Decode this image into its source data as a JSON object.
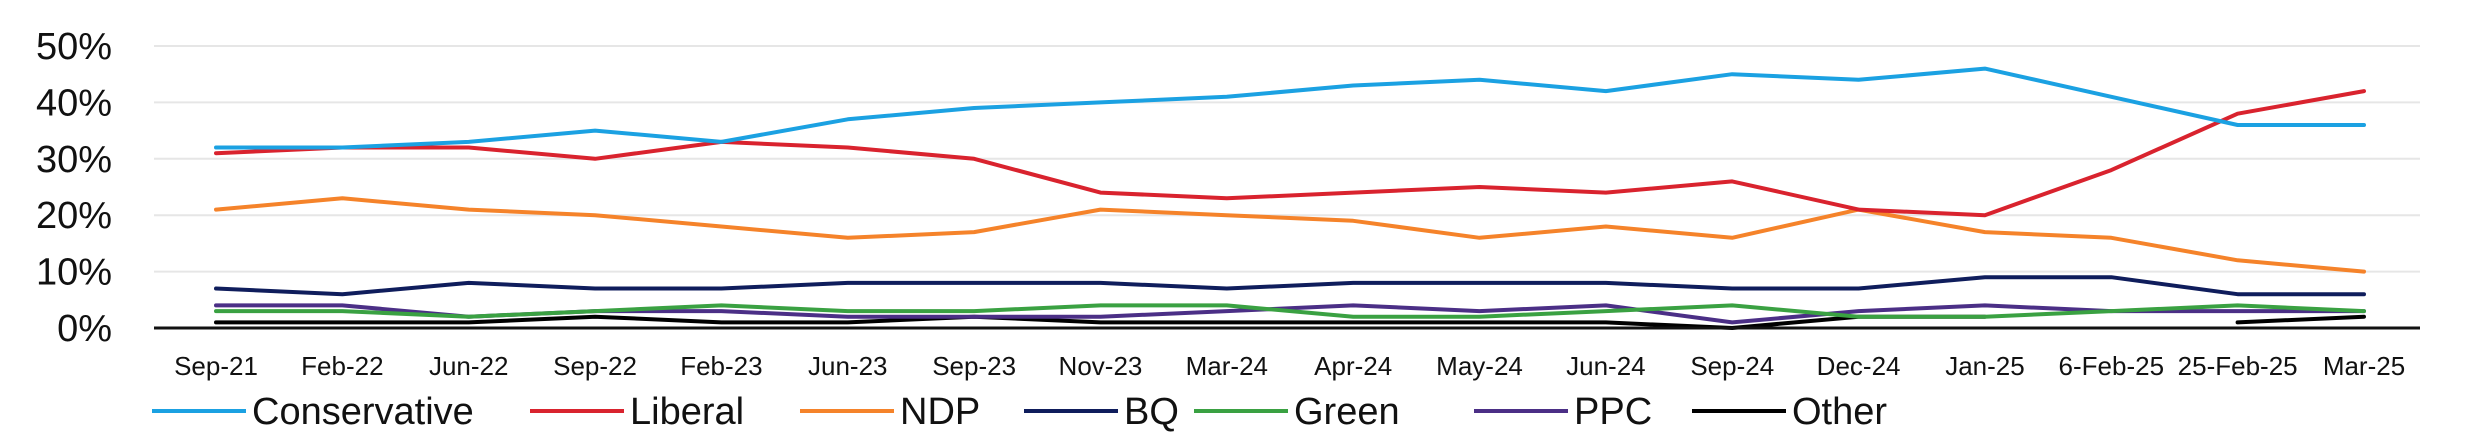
{
  "chart_data": {
    "type": "line",
    "title": "",
    "xlabel": "",
    "ylabel": "",
    "ylim": [
      0,
      50
    ],
    "yticks": [
      0,
      10,
      20,
      30,
      40,
      50
    ],
    "ytick_labels": [
      "0%",
      "10%",
      "20%",
      "30%",
      "40%",
      "50%"
    ],
    "grid": "horizontal",
    "legend_position": "bottom",
    "categories": [
      "Sep-21",
      "Feb-22",
      "Jun-22",
      "Sep-22",
      "Feb-23",
      "Jun-23",
      "Sep-23",
      "Nov-23",
      "Mar-24",
      "Apr-24",
      "May-24",
      "Jun-24",
      "Sep-24",
      "Dec-24",
      "Jan-25",
      "6-Feb-25",
      "25-Feb-25",
      "Mar-25"
    ],
    "series": [
      {
        "name": "Conservative",
        "color": "#1ba1e2",
        "values": [
          32,
          32,
          33,
          35,
          33,
          37,
          39,
          40,
          41,
          43,
          44,
          42,
          45,
          44,
          46,
          41,
          36,
          36
        ]
      },
      {
        "name": "Liberal",
        "color": "#d9232e",
        "values": [
          31,
          32,
          32,
          30,
          33,
          32,
          30,
          24,
          23,
          24,
          25,
          24,
          26,
          21,
          20,
          28,
          38,
          42
        ]
      },
      {
        "name": "NDP",
        "color": "#f5832a",
        "values": [
          21,
          23,
          21,
          20,
          18,
          16,
          17,
          21,
          20,
          19,
          16,
          18,
          16,
          21,
          17,
          16,
          12,
          10
        ]
      },
      {
        "name": "BQ",
        "color": "#0f1d5c",
        "values": [
          7,
          6,
          8,
          7,
          7,
          8,
          8,
          8,
          7,
          8,
          8,
          8,
          7,
          7,
          9,
          9,
          6,
          6
        ]
      },
      {
        "name": "Green",
        "color": "#3aa142",
        "values": [
          3,
          3,
          2,
          3,
          4,
          3,
          3,
          4,
          4,
          2,
          2,
          3,
          4,
          2,
          2,
          3,
          4,
          3
        ]
      },
      {
        "name": "PPC",
        "color": "#4b2f86",
        "values": [
          4,
          4,
          2,
          3,
          3,
          2,
          2,
          2,
          3,
          4,
          3,
          4,
          1,
          3,
          4,
          3,
          3,
          3
        ]
      },
      {
        "name": "Other",
        "color": "#000000",
        "values": [
          1,
          1,
          1,
          2,
          1,
          1,
          2,
          1,
          1,
          1,
          1,
          1,
          0,
          2,
          2,
          null,
          1,
          2
        ]
      }
    ]
  }
}
